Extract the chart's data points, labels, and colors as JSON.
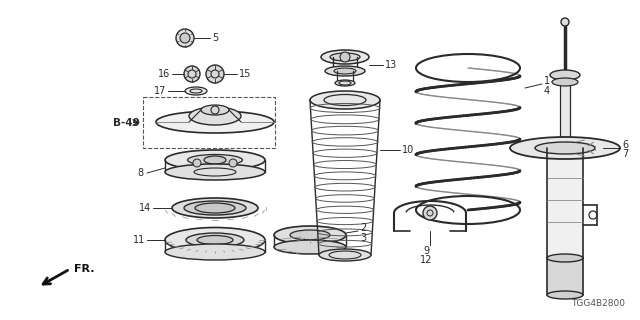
{
  "bg_color": "#ffffff",
  "part_number": "TGG4B2800",
  "dgray": "#2a2a2a",
  "lgray": "#888888",
  "mgray": "#555555"
}
